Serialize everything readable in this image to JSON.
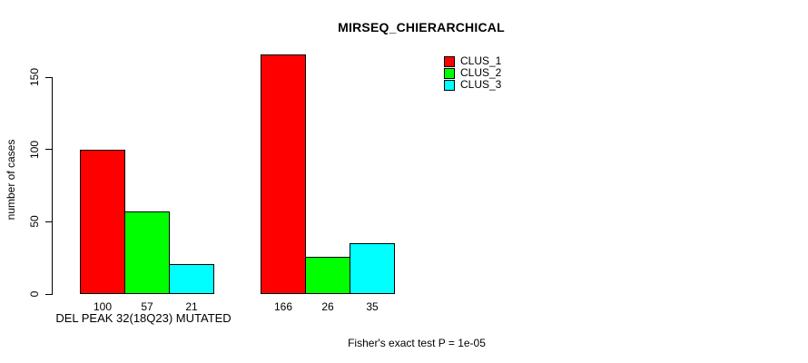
{
  "chart_data": {
    "type": "bar",
    "title": "MIRSEQ_CHIERARCHICAL",
    "xlabel": "",
    "ylabel": "number of cases",
    "ylim": [
      0,
      166
    ],
    "yticks": [
      0,
      50,
      100,
      150
    ],
    "grid": false,
    "legend_position": "top-right-inside",
    "bar_border_color": "#000000",
    "series": [
      {
        "name": "CLUS_1",
        "color": "#FF0000",
        "values": [
          100,
          166
        ]
      },
      {
        "name": "CLUS_2",
        "color": "#00FF00",
        "values": [
          57,
          26
        ]
      },
      {
        "name": "CLUS_3",
        "color": "#00FFFF",
        "values": [
          21,
          35
        ]
      }
    ],
    "groups": [
      {
        "label": "DEL PEAK 32(18Q23) MUTATED",
        "values": [
          100,
          57,
          21
        ]
      },
      {
        "label": "",
        "values": [
          166,
          26,
          35
        ]
      }
    ],
    "bar_value_labels": [
      "100",
      "57",
      "21",
      "166",
      "26",
      "35"
    ],
    "annotation": "Fisher's exact test P = 1e-05"
  }
}
